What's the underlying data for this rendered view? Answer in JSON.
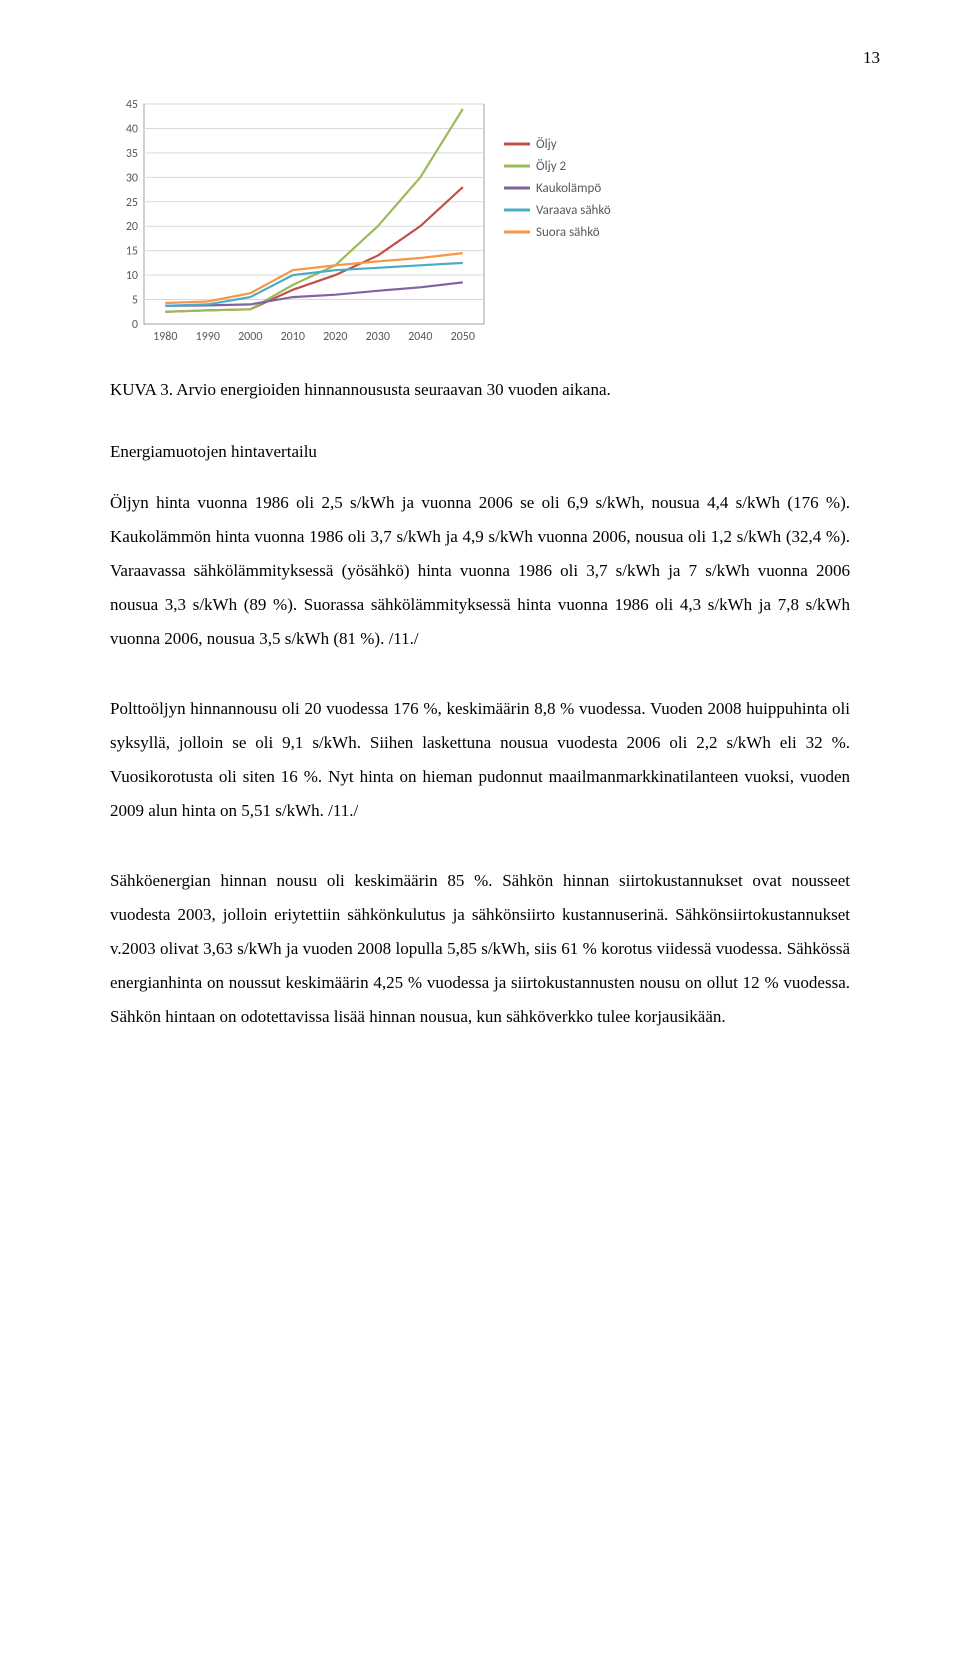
{
  "page_number": "13",
  "chart": {
    "type": "line",
    "background_color": "#ffffff",
    "grid_color": "#d9d9d9",
    "axis_color": "#a0a0a0",
    "axis_font_size": 12,
    "legend_font_size": 13,
    "line_stroke_width": 2.2,
    "x_categories": [
      "1980",
      "1990",
      "2000",
      "2010",
      "2020",
      "2030",
      "2040",
      "2050"
    ],
    "y_min": 0,
    "y_max": 45,
    "y_step": 5,
    "y_ticks": [
      "0",
      "5",
      "10",
      "15",
      "20",
      "25",
      "30",
      "35",
      "40",
      "45"
    ],
    "legend_items": [
      {
        "name": "oljy",
        "label": "Öljy",
        "color": "#c0504d"
      },
      {
        "name": "oljy2",
        "label": "Öljy 2",
        "color": "#9bbb59"
      },
      {
        "name": "kaukolampo",
        "label": "Kaukolämpö",
        "color": "#8064a2"
      },
      {
        "name": "varaava-sahko",
        "label": "Varaava sähkö",
        "color": "#4bacc6"
      },
      {
        "name": "suora-sahko",
        "label": "Suora sähkö",
        "color": "#f79646"
      }
    ],
    "series": {
      "oljy": [
        2.5,
        2.8,
        3.0,
        7.0,
        10.0,
        14.0,
        20.0,
        28.0
      ],
      "oljy2": [
        2.5,
        2.8,
        3.0,
        8.0,
        12.0,
        20.0,
        30.0,
        44.0
      ],
      "kaukolampo": [
        3.7,
        3.8,
        4.0,
        5.5,
        6.0,
        6.8,
        7.5,
        8.5
      ],
      "varaava-sahko": [
        3.7,
        4.0,
        5.5,
        10.0,
        11.0,
        11.5,
        12.0,
        12.5
      ],
      "suora-sahko": [
        4.3,
        4.6,
        6.3,
        11.0,
        12.0,
        12.8,
        13.5,
        14.5
      ]
    }
  },
  "caption": "KUVA 3. Arvio energioiden hinnannoususta seuraavan 30 vuoden aikana.",
  "section_title": "Energiamuotojen hintavertailu",
  "paragraphs": {
    "p1": "Öljyn hinta vuonna 1986 oli 2,5 s/kWh ja vuonna 2006 se oli 6,9 s/kWh, nousua 4,4 s/kWh (176 %). Kaukolämmön hinta vuonna 1986 oli 3,7 s/kWh ja 4,9 s/kWh vuonna 2006, nousua oli 1,2 s/kWh (32,4 %). Varaavassa sähkölämmityksessä (yösähkö) hinta vuonna 1986 oli 3,7 s/kWh ja 7 s/kWh vuonna 2006 nousua 3,3 s/kWh (89 %). Suorassa sähkölämmityksessä hinta vuonna 1986 oli 4,3 s/kWh ja 7,8 s/kWh vuonna 2006, nousua 3,5 s/kWh (81 %). /11./",
    "p2": "Polttoöljyn hinnannousu oli 20 vuodessa 176 %, keskimäärin 8,8 % vuodessa. Vuoden 2008 huippuhinta oli syksyllä, jolloin se oli 9,1 s/kWh. Siihen laskettuna nousua vuodesta 2006 oli 2,2 s/kWh eli 32 %. Vuosikorotusta oli siten 16 %. Nyt hinta on hieman pudonnut maailmanmarkkinatilanteen vuoksi, vuoden 2009 alun hinta on 5,51 s/kWh. /11./",
    "p3": "Sähköenergian hinnan nousu oli keskimäärin 85 %. Sähkön hinnan siirtokustannukset ovat nousseet vuodesta 2003, jolloin eriytettiin sähkönkulutus ja sähkönsiirto kustannuserinä. Sähkönsiirtokustannukset v.2003 olivat 3,63 s/kWh ja vuoden 2008 lopulla 5,85 s/kWh, siis 61 % korotus viidessä vuodessa. Sähkössä energianhinta on noussut keskimäärin 4,25 % vuodessa ja siirtokustannusten nousu on ollut 12 % vuodessa. Sähkön hintaan on odotettavissa lisää hinnan nousua, kun sähköverkko tulee korjausikään."
  }
}
